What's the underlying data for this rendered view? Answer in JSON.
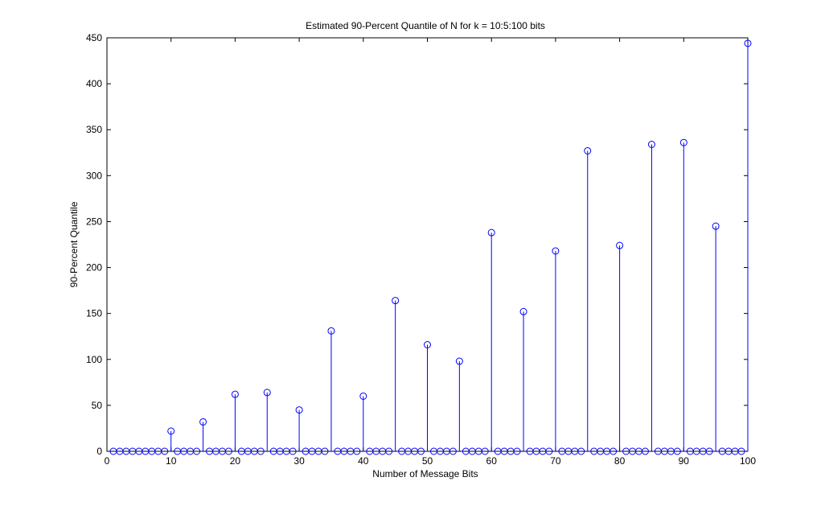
{
  "chart_data": {
    "type": "stem",
    "title": "Estimated 90-Percent Quantile of N for k = 10:5:100 bits",
    "xlabel": "Number of Message Bits",
    "ylabel": "90-Percent Quantile",
    "xlim": [
      0,
      100
    ],
    "ylim": [
      0,
      450
    ],
    "xticks": [
      0,
      10,
      20,
      30,
      40,
      50,
      60,
      70,
      80,
      90,
      100
    ],
    "yticks": [
      0,
      50,
      100,
      150,
      200,
      250,
      300,
      350,
      400,
      450
    ],
    "grid": false,
    "x": [
      1,
      2,
      3,
      4,
      5,
      6,
      7,
      8,
      9,
      10,
      11,
      12,
      13,
      14,
      15,
      16,
      17,
      18,
      19,
      20,
      21,
      22,
      23,
      24,
      25,
      26,
      27,
      28,
      29,
      30,
      31,
      32,
      33,
      34,
      35,
      36,
      37,
      38,
      39,
      40,
      41,
      42,
      43,
      44,
      45,
      46,
      47,
      48,
      49,
      50,
      51,
      52,
      53,
      54,
      55,
      56,
      57,
      58,
      59,
      60,
      61,
      62,
      63,
      64,
      65,
      66,
      67,
      68,
      69,
      70,
      71,
      72,
      73,
      74,
      75,
      76,
      77,
      78,
      79,
      80,
      81,
      82,
      83,
      84,
      85,
      86,
      87,
      88,
      89,
      90,
      91,
      92,
      93,
      94,
      95,
      96,
      97,
      98,
      99,
      100
    ],
    "y": [
      0,
      0,
      0,
      0,
      0,
      0,
      0,
      0,
      0,
      22,
      0,
      0,
      0,
      0,
      32,
      0,
      0,
      0,
      0,
      62,
      0,
      0,
      0,
      0,
      64,
      0,
      0,
      0,
      0,
      45,
      0,
      0,
      0,
      0,
      131,
      0,
      0,
      0,
      0,
      60,
      0,
      0,
      0,
      0,
      164,
      0,
      0,
      0,
      0,
      116,
      0,
      0,
      0,
      0,
      98,
      0,
      0,
      0,
      0,
      238,
      0,
      0,
      0,
      0,
      152,
      0,
      0,
      0,
      0,
      218,
      0,
      0,
      0,
      0,
      327,
      0,
      0,
      0,
      0,
      224,
      0,
      0,
      0,
      0,
      334,
      0,
      0,
      0,
      0,
      336,
      0,
      0,
      0,
      0,
      245,
      0,
      0,
      0,
      0,
      444
    ],
    "colors": {
      "series": "#0000ff",
      "axes": "#000000",
      "background": "#ffffff"
    }
  }
}
